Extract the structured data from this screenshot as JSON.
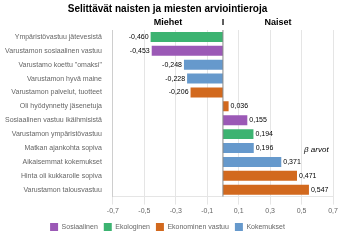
{
  "chart_data": {
    "type": "bar",
    "orientation": "horizontal",
    "title": "Selittävät naisten ja miesten arviointieroja",
    "categories": [
      "Ympäristövastuu jätevesistä",
      "Varustamon sosiaalinen vastuu",
      "Varustamo koettu \"omaksi\"",
      "Varustamon hyvä maine",
      "Varustamon palvelut, tuotteet",
      "Oli hyödynnetty jäsenetuja",
      "Sosiaalinen vastuu ikäihmisistä",
      "Varustamon ympäristövastuu",
      "Matkan ajankohta sopiva",
      "Aikaisemmat kokemukset",
      "Hinta oli kukkarolle sopiva",
      "Varustamon talousvastuu"
    ],
    "series": [
      {
        "name": "Sosiaalinen",
        "color": "#9B59B6",
        "values": [
          null,
          -0.453,
          null,
          null,
          null,
          null,
          0.155,
          null,
          null,
          null,
          null,
          null
        ],
        "value_labels": [
          null,
          "-0,453",
          null,
          null,
          null,
          null,
          "0,155",
          null,
          null,
          null,
          null,
          null
        ]
      },
      {
        "name": "Ekologinen",
        "color": "#3CB371",
        "values": [
          -0.46,
          null,
          null,
          null,
          null,
          null,
          null,
          0.194,
          null,
          null,
          null,
          null
        ],
        "value_labels": [
          "-0,460",
          null,
          null,
          null,
          null,
          null,
          null,
          "0,194",
          null,
          null,
          null,
          null
        ]
      },
      {
        "name": "Ekonominen vastuu",
        "color": "#D2691E",
        "values": [
          null,
          null,
          null,
          null,
          -0.206,
          0.036,
          null,
          null,
          null,
          null,
          0.471,
          0.547
        ],
        "value_labels": [
          null,
          null,
          null,
          null,
          "-0,206",
          "0,036",
          null,
          null,
          null,
          null,
          "0,471",
          "0,547"
        ]
      },
      {
        "name": "Kokemukset",
        "color": "#6699CC",
        "values": [
          null,
          null,
          -0.248,
          -0.228,
          null,
          null,
          null,
          null,
          0.196,
          0.371,
          null,
          null
        ],
        "value_labels": [
          null,
          null,
          "-0,248",
          "-0,228",
          null,
          null,
          null,
          null,
          "0,196",
          "0,371",
          null,
          null
        ]
      }
    ],
    "xlim": [
      -0.7,
      0.7
    ],
    "xticks": [
      {
        "value": -0.7,
        "label": "-0,7"
      },
      {
        "value": -0.5,
        "label": "-0,5"
      },
      {
        "value": -0.3,
        "label": "-0,3"
      },
      {
        "value": -0.1,
        "label": "-0,1"
      },
      {
        "value": 0.1,
        "label": "0,1"
      },
      {
        "value": 0.3,
        "label": "0,3"
      },
      {
        "value": 0.5,
        "label": "0,5"
      },
      {
        "value": 0.7,
        "label": "0,7"
      }
    ],
    "annotations": [
      "Miehet",
      "I",
      "Naiset",
      "β arvot"
    ],
    "grid": true,
    "legend": "bottom",
    "data_labels": true
  }
}
